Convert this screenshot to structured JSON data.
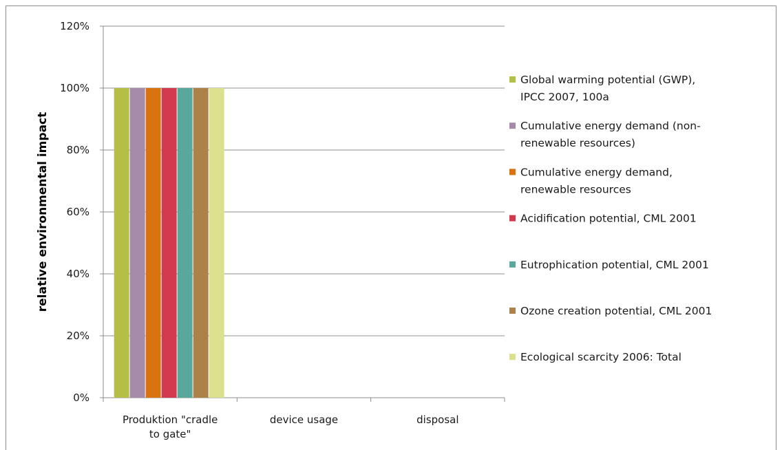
{
  "chart_data": {
    "type": "bar",
    "title": "",
    "xlabel": "",
    "ylabel": "relative environmental impact",
    "ylim": [
      0,
      120
    ],
    "yticks": [
      "0%",
      "20%",
      "40%",
      "60%",
      "80%",
      "100%",
      "120%"
    ],
    "ytick_values": [
      0,
      20,
      40,
      60,
      80,
      100,
      120
    ],
    "grid": "horizontal",
    "legend_position": "right",
    "categories": [
      [
        "Produktion \"cradle",
        "to gate\""
      ],
      [
        "device usage"
      ],
      [
        "disposal"
      ]
    ],
    "series": [
      {
        "name": [
          "Global warming potential (GWP),",
          "IPCC 2007, 100a"
        ],
        "color": "#b5bf48",
        "values": [
          100,
          0,
          0
        ]
      },
      {
        "name": [
          "Cumulative energy demand (non-",
          "renewable resources)"
        ],
        "color": "#a58aa9",
        "values": [
          100,
          0,
          0
        ]
      },
      {
        "name": [
          "Cumulative energy demand,",
          "renewable resources"
        ],
        "color": "#d9730f",
        "values": [
          100,
          0,
          0
        ]
      },
      {
        "name": [
          "Acidification potential, CML 2001"
        ],
        "color": "#d2394e",
        "values": [
          100,
          0,
          0
        ]
      },
      {
        "name": [
          "Eutrophication potential, CML 2001"
        ],
        "color": "#5aa89b",
        "values": [
          100,
          0,
          0
        ]
      },
      {
        "name": [
          "Ozone creation potential, CML 2001"
        ],
        "color": "#ad8249",
        "values": [
          100,
          0,
          0
        ]
      },
      {
        "name": [
          "Ecological scarcity 2006: Total"
        ],
        "color": "#dbe08e",
        "values": [
          100,
          0,
          0
        ]
      }
    ]
  }
}
